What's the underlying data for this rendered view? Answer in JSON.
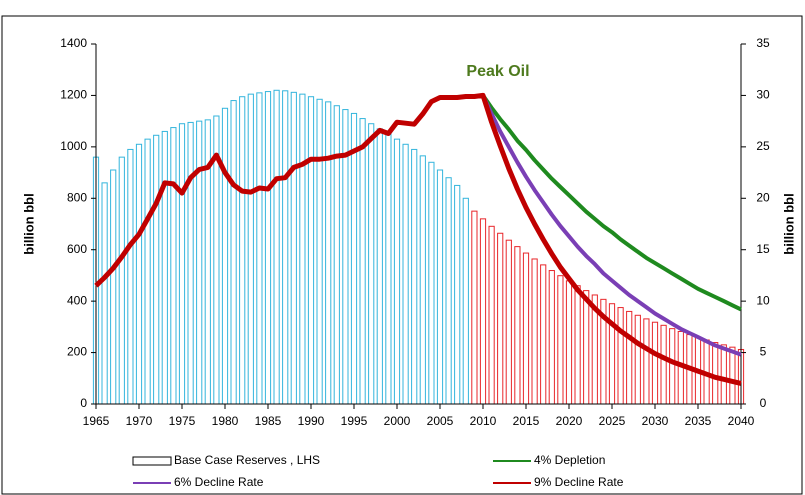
{
  "chart_data": {
    "type": "bar_line",
    "annotation": "Peak Oil",
    "ylabel": "billion bbl",
    "y2label": "billion bbl",
    "x": [
      1965,
      1966,
      1967,
      1968,
      1969,
      1970,
      1971,
      1972,
      1973,
      1974,
      1975,
      1976,
      1977,
      1978,
      1979,
      1980,
      1981,
      1982,
      1983,
      1984,
      1985,
      1986,
      1987,
      1988,
      1989,
      1990,
      1991,
      1992,
      1993,
      1994,
      1995,
      1996,
      1997,
      1998,
      1999,
      2000,
      2001,
      2002,
      2003,
      2004,
      2005,
      2006,
      2007,
      2008,
      2009,
      2010,
      2011,
      2012,
      2013,
      2014,
      2015,
      2016,
      2017,
      2018,
      2019,
      2020,
      2021,
      2022,
      2023,
      2024,
      2025,
      2026,
      2027,
      2028,
      2029,
      2030,
      2031,
      2032,
      2033,
      2034,
      2035,
      2036,
      2037,
      2038,
      2039,
      2040
    ],
    "xlim": [
      1965,
      2040
    ],
    "xticks": [
      1965,
      1970,
      1975,
      1980,
      1985,
      1990,
      1995,
      2000,
      2005,
      2010,
      2015,
      2020,
      2025,
      2030,
      2035,
      2040
    ],
    "ylim": [
      0,
      1400
    ],
    "yticks": [
      0,
      200,
      400,
      600,
      800,
      1000,
      1200,
      1400
    ],
    "y2lim": [
      0,
      35
    ],
    "y2ticks": [
      0,
      5,
      10,
      15,
      20,
      25,
      30,
      35
    ],
    "bars": {
      "name": "Base Case Reserves , LHS",
      "values": [
        960,
        860,
        910,
        960,
        990,
        1010,
        1030,
        1045,
        1060,
        1075,
        1090,
        1095,
        1100,
        1105,
        1120,
        1150,
        1180,
        1195,
        1205,
        1210,
        1215,
        1220,
        1218,
        1212,
        1205,
        1195,
        1185,
        1175,
        1160,
        1145,
        1130,
        1110,
        1090,
        1070,
        1050,
        1030,
        1010,
        990,
        965,
        940,
        910,
        880,
        850,
        800,
        750,
        720,
        691,
        664,
        637,
        612,
        587,
        564,
        541,
        519,
        499,
        479,
        460,
        441,
        424,
        407,
        390,
        375,
        360,
        345,
        331,
        318,
        306,
        293,
        282,
        270,
        260,
        249,
        239,
        230,
        221,
        212
      ],
      "colors": [
        "#33b5dc",
        "#33b5dc",
        "#33b5dc",
        "#33b5dc",
        "#33b5dc",
        "#33b5dc",
        "#33b5dc",
        "#33b5dc",
        "#33b5dc",
        "#33b5dc",
        "#33b5dc",
        "#33b5dc",
        "#33b5dc",
        "#33b5dc",
        "#33b5dc",
        "#33b5dc",
        "#33b5dc",
        "#33b5dc",
        "#33b5dc",
        "#33b5dc",
        "#33b5dc",
        "#33b5dc",
        "#33b5dc",
        "#33b5dc",
        "#33b5dc",
        "#33b5dc",
        "#33b5dc",
        "#33b5dc",
        "#33b5dc",
        "#33b5dc",
        "#33b5dc",
        "#33b5dc",
        "#33b5dc",
        "#33b5dc",
        "#33b5dc",
        "#33b5dc",
        "#33b5dc",
        "#33b5dc",
        "#33b5dc",
        "#33b5dc",
        "#33b5dc",
        "#33b5dc",
        "#33b5dc",
        "#33b5dc",
        "#e8262a",
        "#e8262a",
        "#e8262a",
        "#e8262a",
        "#e8262a",
        "#e8262a",
        "#e8262a",
        "#e8262a",
        "#e8262a",
        "#e8262a",
        "#e8262a",
        "#e8262a",
        "#e8262a",
        "#e8262a",
        "#e8262a",
        "#e8262a",
        "#e8262a",
        "#e8262a",
        "#e8262a",
        "#e8262a",
        "#e8262a",
        "#e8262a",
        "#e8262a",
        "#e8262a",
        "#e8262a",
        "#e8262a",
        "#e8262a",
        "#e8262a",
        "#e8262a",
        "#e8262a",
        "#e8262a",
        "#e8262a"
      ]
    },
    "series": [
      {
        "name": "4% Depletion",
        "color": "#1f8a1f",
        "axis": "y2",
        "values": [
          null,
          null,
          null,
          null,
          null,
          null,
          null,
          null,
          null,
          null,
          null,
          null,
          null,
          null,
          null,
          null,
          null,
          null,
          null,
          null,
          null,
          null,
          null,
          null,
          null,
          null,
          null,
          null,
          null,
          null,
          null,
          null,
          null,
          null,
          null,
          null,
          null,
          null,
          null,
          null,
          null,
          null,
          null,
          null,
          null,
          30.0,
          28.8,
          27.7,
          26.7,
          25.6,
          24.7,
          23.7,
          22.8,
          21.9,
          21.1,
          20.3,
          19.5,
          18.7,
          18.0,
          17.3,
          16.7,
          16.0,
          15.4,
          14.8,
          14.2,
          13.7,
          13.2,
          12.7,
          12.2,
          11.7,
          11.2,
          10.8,
          10.4,
          10.0,
          9.6,
          9.2
        ]
      },
      {
        "name": "6% Decline Rate",
        "color": "#7a3fb5",
        "axis": "y2",
        "values": [
          null,
          null,
          null,
          null,
          null,
          null,
          null,
          null,
          null,
          null,
          null,
          null,
          null,
          null,
          null,
          null,
          null,
          null,
          null,
          null,
          null,
          null,
          null,
          null,
          null,
          null,
          null,
          null,
          null,
          null,
          null,
          null,
          null,
          null,
          null,
          null,
          null,
          null,
          null,
          null,
          null,
          null,
          null,
          null,
          null,
          30.0,
          28.2,
          26.5,
          25.0,
          23.5,
          22.1,
          20.8,
          19.6,
          18.4,
          17.3,
          16.3,
          15.3,
          14.4,
          13.6,
          12.7,
          12.0,
          11.3,
          10.6,
          10.0,
          9.4,
          8.8,
          8.3,
          7.8,
          7.3,
          6.9,
          6.5,
          6.1,
          5.7,
          5.4,
          5.1,
          4.8
        ]
      },
      {
        "name": "9% Decline Rate",
        "color": "#c00000",
        "axis": "y2",
        "values": [
          11.5,
          12.3,
          13.2,
          14.3,
          15.5,
          16.5,
          18.0,
          19.5,
          21.5,
          21.4,
          20.5,
          22.0,
          22.8,
          23.0,
          24.2,
          22.5,
          21.3,
          20.7,
          20.6,
          21.0,
          20.9,
          21.9,
          22.0,
          23.0,
          23.3,
          23.8,
          23.8,
          23.9,
          24.1,
          24.2,
          24.6,
          25.0,
          25.8,
          26.6,
          26.3,
          27.4,
          27.3,
          27.2,
          28.2,
          29.4,
          29.8,
          29.8,
          29.8,
          29.9,
          29.9,
          30.0,
          27.4,
          25.1,
          22.9,
          20.9,
          19.1,
          17.5,
          16.0,
          14.6,
          13.3,
          12.2,
          11.1,
          10.2,
          9.3,
          8.5,
          7.8,
          7.1,
          6.5,
          5.9,
          5.4,
          4.9,
          4.5,
          4.1,
          3.8,
          3.5,
          3.2,
          2.9,
          2.6,
          2.4,
          2.2,
          2.0
        ]
      }
    ]
  }
}
